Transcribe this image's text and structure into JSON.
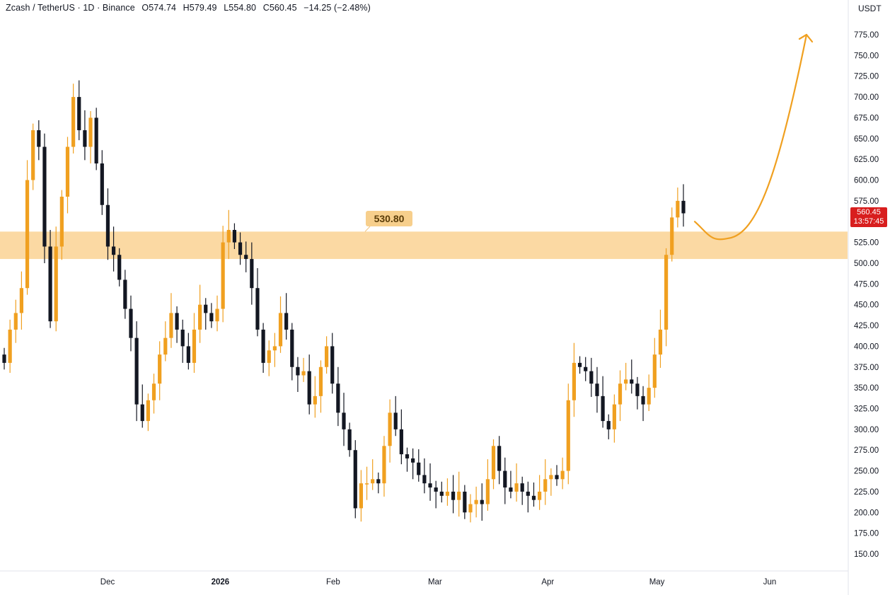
{
  "header": {
    "symbol": "Zcash / TetherUS · 1D · Binance",
    "open_label": "O",
    "open": "574.74",
    "high_label": "H",
    "high": "579.49",
    "low_label": "L",
    "low": "554.80",
    "close_label": "C",
    "close": "560.45",
    "change": "−14.25 (−2.48%)"
  },
  "axis_unit": "USDT",
  "level_label": "530.80",
  "price_tag": {
    "price": "560.45",
    "countdown": "13:57:45"
  },
  "colors": {
    "up": "#f0a020",
    "down": "#131722",
    "zone": "#fbd9a3",
    "arrow": "#f0a020",
    "grid_text": "#131722",
    "price_tag": "#d81e1e"
  },
  "chart_data": {
    "type": "candlestick",
    "title": "Zcash / TetherUS · 1D · Binance",
    "ylim": [
      130,
      800
    ],
    "y_ticks": [
      150,
      175,
      200,
      225,
      250,
      275,
      300,
      325,
      350,
      375,
      400,
      425,
      450,
      475,
      500,
      525,
      550,
      575,
      600,
      625,
      650,
      675,
      700,
      725,
      750,
      775
    ],
    "x_ticks": [
      {
        "label": "Dec",
        "date": "2025-12-01"
      },
      {
        "label": "2026",
        "date": "2026-01-01"
      },
      {
        "label": "Feb",
        "date": "2026-02-01"
      },
      {
        "label": "Mar",
        "date": "2026-03-01"
      },
      {
        "label": "Apr",
        "date": "2026-04-01"
      },
      {
        "label": "May",
        "date": "2026-05-01"
      },
      {
        "label": "Jun",
        "date": "2026-06-01"
      }
    ],
    "x_start": "2025-10-28",
    "support_zone": [
      505,
      538
    ],
    "support_label_value": 530.8,
    "projection": "curved arrow from ~550 dipping to ~530 then rising to ~775 by early June",
    "closes": [
      380,
      420,
      440,
      470,
      600,
      660,
      640,
      520,
      430,
      520,
      580,
      640,
      700,
      660,
      640,
      675,
      620,
      570,
      520,
      510,
      480,
      445,
      410,
      330,
      310,
      335,
      355,
      390,
      410,
      440,
      420,
      400,
      380,
      420,
      450,
      440,
      430,
      445,
      525,
      540,
      525,
      510,
      505,
      470,
      420,
      380,
      395,
      400,
      440,
      420,
      375,
      365,
      370,
      330,
      340,
      375,
      400,
      355,
      320,
      300,
      275,
      205,
      235,
      235,
      240,
      235,
      280,
      320,
      300,
      270,
      265,
      260,
      245,
      235,
      230,
      225,
      220,
      225,
      215,
      225,
      200,
      210,
      215,
      210,
      240,
      280,
      250,
      230,
      225,
      235,
      225,
      220,
      215,
      225,
      240,
      245,
      240,
      250,
      335,
      380,
      375,
      370,
      355,
      340,
      310,
      300,
      330,
      355,
      360,
      355,
      340,
      330,
      350,
      390,
      420,
      510,
      555,
      575,
      560
    ]
  }
}
